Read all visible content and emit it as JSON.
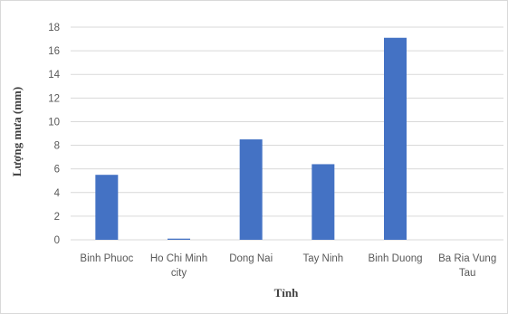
{
  "chart_data": {
    "type": "bar",
    "categories": [
      [
        "Binh Phuoc"
      ],
      [
        "Ho Chi Minh",
        "city"
      ],
      [
        "Dong Nai"
      ],
      [
        "Tay Ninh"
      ],
      [
        "Binh Duong"
      ],
      [
        "Ba Ria Vung",
        "Tau"
      ]
    ],
    "values": [
      5.5,
      0.1,
      8.5,
      6.4,
      17.1,
      0
    ],
    "xlabel": "Tỉnh",
    "ylabel": "Lượng mưa (mm)",
    "ylim": [
      0,
      18
    ],
    "yticks": [
      0,
      2,
      4,
      6,
      8,
      10,
      12,
      14,
      16,
      18
    ],
    "grid": true,
    "bar_color": "#4472c4",
    "grid_color": "#d9d9d9"
  }
}
